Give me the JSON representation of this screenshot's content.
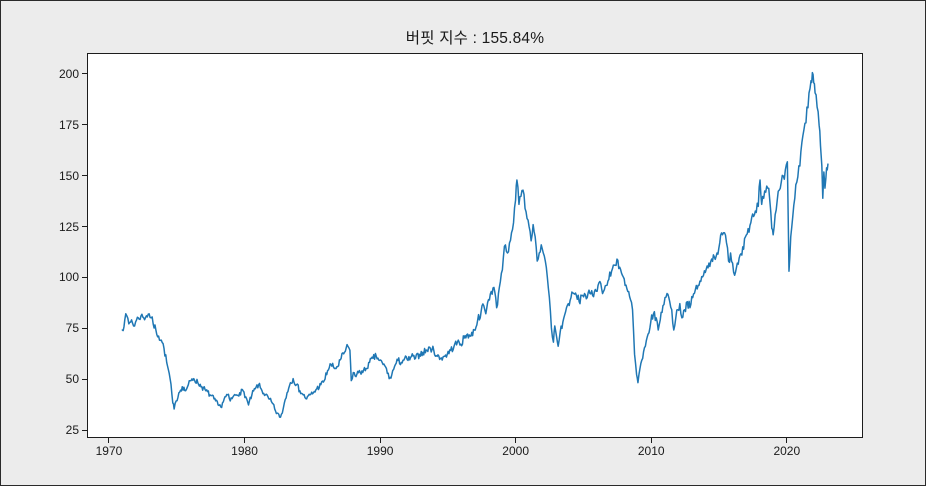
{
  "figure": {
    "title": "버핏 지수 : 155.84%",
    "background_color": "#ececec",
    "plot_background_color": "#ffffff",
    "spine_color": "#1c1c1c",
    "text_color": "#1a1a1a"
  },
  "chart_data": {
    "type": "line",
    "title": "버핏 지수 : 155.84%",
    "xlabel": "",
    "ylabel": "",
    "grid": false,
    "legend_position": "none",
    "latest_value_pct": 155.84,
    "xlim": [
      1968.38,
      2025.62
    ],
    "ylim": [
      21.2,
      210.2
    ],
    "x_ticks": [
      1970,
      1980,
      1990,
      2000,
      2010,
      2020
    ],
    "x_tick_labels": [
      "1970",
      "1980",
      "1990",
      "2000",
      "2010",
      "2020"
    ],
    "y_ticks": [
      25,
      50,
      75,
      100,
      125,
      150,
      175,
      200
    ],
    "y_tick_labels": [
      "25",
      "50",
      "75",
      "100",
      "125",
      "150",
      "175",
      "200"
    ],
    "series": [
      {
        "name": "버핏 지수",
        "color": "#1f77b4",
        "points": [
          [
            1970.92,
            74
          ],
          [
            1971.1,
            79
          ],
          [
            1971.25,
            81
          ],
          [
            1971.4,
            77
          ],
          [
            1971.6,
            79
          ],
          [
            1971.75,
            76
          ],
          [
            1971.9,
            78
          ],
          [
            1972.1,
            80
          ],
          [
            1972.3,
            81
          ],
          [
            1972.5,
            80
          ],
          [
            1972.7,
            81
          ],
          [
            1972.9,
            82
          ],
          [
            1973.05,
            80
          ],
          [
            1973.2,
            77
          ],
          [
            1973.4,
            74
          ],
          [
            1973.6,
            71
          ],
          [
            1973.8,
            69
          ],
          [
            1974.0,
            65
          ],
          [
            1974.2,
            58
          ],
          [
            1974.45,
            50
          ],
          [
            1974.65,
            38
          ],
          [
            1974.75,
            35
          ],
          [
            1974.9,
            39
          ],
          [
            1975.1,
            43
          ],
          [
            1975.35,
            46
          ],
          [
            1975.6,
            44
          ],
          [
            1975.8,
            47
          ],
          [
            1976.0,
            49
          ],
          [
            1976.2,
            50
          ],
          [
            1976.5,
            48
          ],
          [
            1976.8,
            46
          ],
          [
            1977.1,
            44
          ],
          [
            1977.4,
            42
          ],
          [
            1977.7,
            40
          ],
          [
            1978.0,
            37
          ],
          [
            1978.2,
            36
          ],
          [
            1978.45,
            40
          ],
          [
            1978.7,
            42
          ],
          [
            1978.9,
            39
          ],
          [
            1979.1,
            41
          ],
          [
            1979.35,
            42
          ],
          [
            1979.6,
            43
          ],
          [
            1979.85,
            44
          ],
          [
            1980.05,
            41
          ],
          [
            1980.25,
            37
          ],
          [
            1980.5,
            42
          ],
          [
            1980.75,
            45
          ],
          [
            1981.0,
            47
          ],
          [
            1981.25,
            44
          ],
          [
            1981.5,
            42
          ],
          [
            1981.75,
            40
          ],
          [
            1982.0,
            38
          ],
          [
            1982.25,
            34
          ],
          [
            1982.55,
            31
          ],
          [
            1982.75,
            33
          ],
          [
            1982.9,
            38
          ],
          [
            1983.1,
            43
          ],
          [
            1983.35,
            48
          ],
          [
            1983.55,
            50
          ],
          [
            1983.8,
            47
          ],
          [
            1984.05,
            44
          ],
          [
            1984.3,
            42
          ],
          [
            1984.55,
            40
          ],
          [
            1984.8,
            42
          ],
          [
            1985.05,
            43
          ],
          [
            1985.3,
            45
          ],
          [
            1985.6,
            47
          ],
          [
            1985.85,
            49
          ],
          [
            1986.1,
            54
          ],
          [
            1986.35,
            57
          ],
          [
            1986.6,
            55
          ],
          [
            1986.85,
            56
          ],
          [
            1987.1,
            60
          ],
          [
            1987.35,
            63
          ],
          [
            1987.6,
            66
          ],
          [
            1987.75,
            64
          ],
          [
            1987.85,
            49
          ],
          [
            1988.0,
            53
          ],
          [
            1988.2,
            51
          ],
          [
            1988.45,
            54
          ],
          [
            1988.7,
            53
          ],
          [
            1988.95,
            55
          ],
          [
            1989.2,
            58
          ],
          [
            1989.45,
            60
          ],
          [
            1989.7,
            61
          ],
          [
            1989.95,
            59
          ],
          [
            1990.2,
            57
          ],
          [
            1990.45,
            55
          ],
          [
            1990.65,
            50
          ],
          [
            1990.85,
            52
          ],
          [
            1991.05,
            56
          ],
          [
            1991.3,
            59
          ],
          [
            1991.55,
            58
          ],
          [
            1991.8,
            60
          ],
          [
            1992.05,
            59
          ],
          [
            1992.3,
            61
          ],
          [
            1992.6,
            60
          ],
          [
            1992.9,
            62
          ],
          [
            1993.15,
            63
          ],
          [
            1993.45,
            64
          ],
          [
            1993.7,
            65
          ],
          [
            1993.95,
            64
          ],
          [
            1994.2,
            61
          ],
          [
            1994.45,
            60
          ],
          [
            1994.7,
            61
          ],
          [
            1994.95,
            62
          ],
          [
            1995.2,
            64
          ],
          [
            1995.45,
            66
          ],
          [
            1995.7,
            68
          ],
          [
            1995.95,
            67
          ],
          [
            1996.2,
            70
          ],
          [
            1996.45,
            72
          ],
          [
            1996.7,
            71
          ],
          [
            1996.95,
            74
          ],
          [
            1997.2,
            79
          ],
          [
            1997.45,
            83
          ],
          [
            1997.65,
            86
          ],
          [
            1997.8,
            82
          ],
          [
            1998.0,
            89
          ],
          [
            1998.2,
            93
          ],
          [
            1998.4,
            95
          ],
          [
            1998.6,
            85
          ],
          [
            1998.8,
            95
          ],
          [
            1998.95,
            102
          ],
          [
            1999.1,
            110
          ],
          [
            1999.25,
            116
          ],
          [
            1999.4,
            112
          ],
          [
            1999.55,
            117
          ],
          [
            1999.7,
            122
          ],
          [
            1999.85,
            127
          ],
          [
            2000.0,
            138
          ],
          [
            2000.1,
            148
          ],
          [
            2000.25,
            136
          ],
          [
            2000.4,
            140
          ],
          [
            2000.55,
            143
          ],
          [
            2000.7,
            134
          ],
          [
            2000.85,
            129
          ],
          [
            2001.0,
            125
          ],
          [
            2001.15,
            118
          ],
          [
            2001.3,
            126
          ],
          [
            2001.45,
            120
          ],
          [
            2001.6,
            108
          ],
          [
            2001.75,
            112
          ],
          [
            2001.9,
            116
          ],
          [
            2002.05,
            112
          ],
          [
            2002.2,
            108
          ],
          [
            2002.35,
            100
          ],
          [
            2002.5,
            90
          ],
          [
            2002.65,
            75
          ],
          [
            2002.8,
            68
          ],
          [
            2002.9,
            76
          ],
          [
            2003.05,
            70
          ],
          [
            2003.15,
            66
          ],
          [
            2003.3,
            73
          ],
          [
            2003.5,
            78
          ],
          [
            2003.7,
            83
          ],
          [
            2003.9,
            87
          ],
          [
            2004.1,
            90
          ],
          [
            2004.3,
            92
          ],
          [
            2004.5,
            91
          ],
          [
            2004.7,
            88
          ],
          [
            2004.9,
            91
          ],
          [
            2005.1,
            92
          ],
          [
            2005.3,
            90
          ],
          [
            2005.5,
            92
          ],
          [
            2005.7,
            91
          ],
          [
            2005.9,
            94
          ],
          [
            2006.1,
            96
          ],
          [
            2006.3,
            97
          ],
          [
            2006.5,
            93
          ],
          [
            2006.7,
            96
          ],
          [
            2006.9,
            99
          ],
          [
            2007.1,
            103
          ],
          [
            2007.3,
            106
          ],
          [
            2007.5,
            109
          ],
          [
            2007.7,
            105
          ],
          [
            2007.9,
            101
          ],
          [
            2008.1,
            96
          ],
          [
            2008.3,
            93
          ],
          [
            2008.5,
            89
          ],
          [
            2008.65,
            84
          ],
          [
            2008.8,
            62
          ],
          [
            2008.95,
            52
          ],
          [
            2009.05,
            48
          ],
          [
            2009.2,
            55
          ],
          [
            2009.4,
            60
          ],
          [
            2009.6,
            66
          ],
          [
            2009.8,
            72
          ],
          [
            2010.0,
            78
          ],
          [
            2010.2,
            82
          ],
          [
            2010.4,
            80
          ],
          [
            2010.55,
            74
          ],
          [
            2010.7,
            79
          ],
          [
            2010.9,
            86
          ],
          [
            2011.05,
            90
          ],
          [
            2011.2,
            92
          ],
          [
            2011.4,
            88
          ],
          [
            2011.55,
            84
          ],
          [
            2011.7,
            74
          ],
          [
            2011.85,
            80
          ],
          [
            2012.0,
            84
          ],
          [
            2012.15,
            87
          ],
          [
            2012.3,
            80
          ],
          [
            2012.5,
            84
          ],
          [
            2012.7,
            88
          ],
          [
            2012.9,
            85
          ],
          [
            2013.1,
            90
          ],
          [
            2013.3,
            94
          ],
          [
            2013.5,
            96
          ],
          [
            2013.7,
            98
          ],
          [
            2013.9,
            101
          ],
          [
            2014.1,
            104
          ],
          [
            2014.3,
            107
          ],
          [
            2014.5,
            109
          ],
          [
            2014.7,
            110
          ],
          [
            2014.9,
            112
          ],
          [
            2015.1,
            117
          ],
          [
            2015.3,
            121
          ],
          [
            2015.45,
            122
          ],
          [
            2015.6,
            117
          ],
          [
            2015.75,
            108
          ],
          [
            2015.9,
            112
          ],
          [
            2016.05,
            107
          ],
          [
            2016.2,
            101
          ],
          [
            2016.4,
            107
          ],
          [
            2016.6,
            111
          ],
          [
            2016.8,
            115
          ],
          [
            2017.0,
            120
          ],
          [
            2017.2,
            124
          ],
          [
            2017.4,
            127
          ],
          [
            2017.6,
            130
          ],
          [
            2017.8,
            132
          ],
          [
            2017.95,
            135
          ],
          [
            2018.08,
            148
          ],
          [
            2018.2,
            136
          ],
          [
            2018.35,
            139
          ],
          [
            2018.5,
            142
          ],
          [
            2018.65,
            144
          ],
          [
            2018.8,
            138
          ],
          [
            2018.95,
            124
          ],
          [
            2019.05,
            121
          ],
          [
            2019.2,
            131
          ],
          [
            2019.35,
            138
          ],
          [
            2019.5,
            143
          ],
          [
            2019.65,
            147
          ],
          [
            2019.8,
            150
          ],
          [
            2019.95,
            153
          ],
          [
            2020.1,
            157
          ],
          [
            2020.22,
            103
          ],
          [
            2020.35,
            120
          ],
          [
            2020.5,
            130
          ],
          [
            2020.65,
            139
          ],
          [
            2020.8,
            147
          ],
          [
            2020.95,
            155
          ],
          [
            2021.1,
            162
          ],
          [
            2021.25,
            170
          ],
          [
            2021.4,
            176
          ],
          [
            2021.55,
            184
          ],
          [
            2021.7,
            191
          ],
          [
            2021.85,
            197
          ],
          [
            2021.95,
            201
          ],
          [
            2022.05,
            196
          ],
          [
            2022.15,
            191
          ],
          [
            2022.3,
            184
          ],
          [
            2022.45,
            175
          ],
          [
            2022.55,
            165
          ],
          [
            2022.65,
            155
          ],
          [
            2022.72,
            139
          ],
          [
            2022.8,
            152
          ],
          [
            2022.88,
            144
          ],
          [
            2022.95,
            149
          ],
          [
            2023.05,
            153
          ],
          [
            2023.1,
            155.84
          ]
        ]
      }
    ]
  }
}
